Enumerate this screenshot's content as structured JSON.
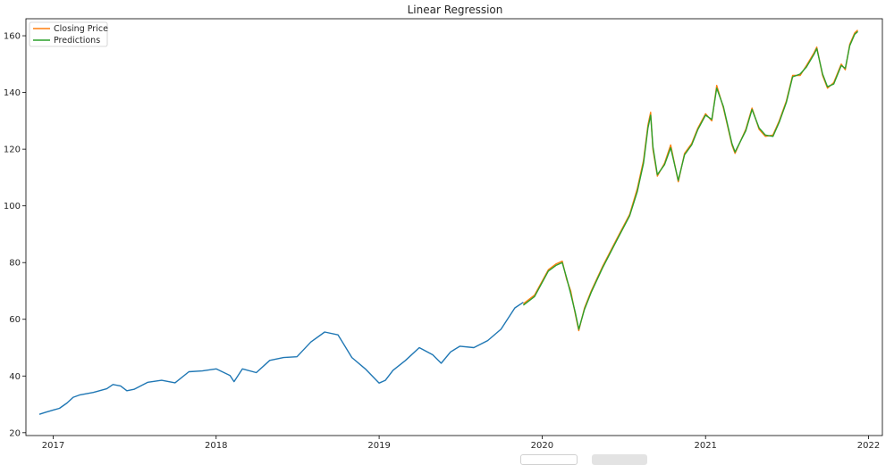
{
  "chart_data": {
    "type": "line",
    "title": "Linear Regression",
    "xlabel": "",
    "ylabel": "",
    "x_axis": "date",
    "xlim": [
      "2016-11-01",
      "2022-02-01"
    ],
    "ylim": [
      19,
      166
    ],
    "x_ticks": [
      "2017-01-01",
      "2018-01-01",
      "2019-01-01",
      "2020-01-01",
      "2021-01-01",
      "2022-01-01"
    ],
    "x_tick_labels": [
      "2017",
      "2018",
      "2019",
      "2020",
      "2021",
      "2022"
    ],
    "y_ticks": [
      20,
      40,
      60,
      80,
      100,
      120,
      140,
      160
    ],
    "grid": false,
    "legend": {
      "location": "top-left",
      "entries": [
        "Closing Price",
        "Predictions"
      ]
    },
    "series": [
      {
        "color": "#1f77b4",
        "points": [
          [
            "2016-12-01",
            26.5
          ],
          [
            "2016-12-15",
            27.2
          ],
          [
            "2017-01-01",
            28.0
          ],
          [
            "2017-01-15",
            28.6
          ],
          [
            "2017-02-01",
            30.5
          ],
          [
            "2017-02-15",
            32.5
          ],
          [
            "2017-03-01",
            33.3
          ],
          [
            "2017-04-01",
            34.2
          ],
          [
            "2017-05-01",
            35.5
          ],
          [
            "2017-05-15",
            37.0
          ],
          [
            "2017-06-01",
            36.5
          ],
          [
            "2017-06-15",
            34.8
          ],
          [
            "2017-07-01",
            35.3
          ],
          [
            "2017-08-01",
            37.8
          ],
          [
            "2017-09-01",
            38.5
          ],
          [
            "2017-10-01",
            37.6
          ],
          [
            "2017-11-01",
            41.5
          ],
          [
            "2017-12-01",
            41.8
          ],
          [
            "2018-01-01",
            42.5
          ],
          [
            "2018-02-01",
            40.2
          ],
          [
            "2018-02-10",
            38.0
          ],
          [
            "2018-03-01",
            42.5
          ],
          [
            "2018-04-01",
            41.2
          ],
          [
            "2018-05-01",
            45.5
          ],
          [
            "2018-06-01",
            46.5
          ],
          [
            "2018-07-01",
            46.8
          ],
          [
            "2018-08-01",
            52.0
          ],
          [
            "2018-09-01",
            55.5
          ],
          [
            "2018-10-01",
            54.5
          ],
          [
            "2018-11-01",
            46.5
          ],
          [
            "2018-12-01",
            42.5
          ],
          [
            "2019-01-01",
            37.5
          ],
          [
            "2019-01-15",
            38.5
          ],
          [
            "2019-02-01",
            42.0
          ],
          [
            "2019-03-01",
            45.5
          ],
          [
            "2019-04-01",
            50.0
          ],
          [
            "2019-05-01",
            47.5
          ],
          [
            "2019-05-20",
            44.5
          ],
          [
            "2019-06-10",
            48.5
          ],
          [
            "2019-07-01",
            50.5
          ],
          [
            "2019-08-01",
            50.0
          ],
          [
            "2019-09-01",
            52.5
          ],
          [
            "2019-10-01",
            56.5
          ],
          [
            "2019-11-01",
            64.0
          ],
          [
            "2019-11-20",
            66.0
          ]
        ]
      },
      {
        "name": "Closing Price",
        "color": "#ff7f0e",
        "points": [
          [
            "2019-11-20",
            65.5
          ],
          [
            "2019-12-15",
            68.5
          ],
          [
            "2020-01-15",
            77.5
          ],
          [
            "2020-02-01",
            79.5
          ],
          [
            "2020-02-15",
            80.5
          ],
          [
            "2020-02-25",
            74.0
          ],
          [
            "2020-03-05",
            70.0
          ],
          [
            "2020-03-15",
            62.0
          ],
          [
            "2020-03-23",
            56.0
          ],
          [
            "2020-04-05",
            64.0
          ],
          [
            "2020-04-20",
            70.0
          ],
          [
            "2020-05-15",
            78.5
          ],
          [
            "2020-06-15",
            88.0
          ],
          [
            "2020-07-15",
            97.0
          ],
          [
            "2020-08-01",
            106.0
          ],
          [
            "2020-08-15",
            116.0
          ],
          [
            "2020-08-25",
            128.5
          ],
          [
            "2020-08-31",
            133.0
          ],
          [
            "2020-09-05",
            120.0
          ],
          [
            "2020-09-15",
            110.5
          ],
          [
            "2020-10-01",
            115.0
          ],
          [
            "2020-10-15",
            121.5
          ],
          [
            "2020-11-01",
            108.5
          ],
          [
            "2020-11-15",
            118.5
          ],
          [
            "2020-12-01",
            122.0
          ],
          [
            "2020-12-15",
            127.5
          ],
          [
            "2021-01-01",
            132.5
          ],
          [
            "2021-01-15",
            130.0
          ],
          [
            "2021-01-26",
            142.5
          ],
          [
            "2021-02-10",
            134.5
          ],
          [
            "2021-03-01",
            121.5
          ],
          [
            "2021-03-08",
            118.5
          ],
          [
            "2021-04-01",
            127.0
          ],
          [
            "2021-04-15",
            134.5
          ],
          [
            "2021-05-01",
            127.0
          ],
          [
            "2021-05-15",
            124.5
          ],
          [
            "2021-06-01",
            125.0
          ],
          [
            "2021-06-15",
            130.0
          ],
          [
            "2021-07-01",
            137.0
          ],
          [
            "2021-07-15",
            146.0
          ],
          [
            "2021-08-01",
            146.0
          ],
          [
            "2021-08-15",
            149.5
          ],
          [
            "2021-09-01",
            154.0
          ],
          [
            "2021-09-07",
            156.0
          ],
          [
            "2021-09-20",
            146.0
          ],
          [
            "2021-10-01",
            141.5
          ],
          [
            "2021-10-15",
            143.5
          ],
          [
            "2021-11-01",
            150.0
          ],
          [
            "2021-11-10",
            148.0
          ],
          [
            "2021-11-20",
            157.0
          ],
          [
            "2021-12-01",
            161.0
          ],
          [
            "2021-12-08",
            162.0
          ]
        ]
      },
      {
        "name": "Predictions",
        "color": "#2ca02c",
        "points": [
          [
            "2019-11-20",
            65.0
          ],
          [
            "2019-12-15",
            68.0
          ],
          [
            "2020-01-15",
            77.0
          ],
          [
            "2020-02-01",
            79.0
          ],
          [
            "2020-02-15",
            80.0
          ],
          [
            "2020-02-25",
            74.5
          ],
          [
            "2020-03-05",
            69.0
          ],
          [
            "2020-03-15",
            62.5
          ],
          [
            "2020-03-23",
            56.5
          ],
          [
            "2020-04-05",
            63.5
          ],
          [
            "2020-04-20",
            69.5
          ],
          [
            "2020-05-15",
            78.0
          ],
          [
            "2020-06-15",
            87.5
          ],
          [
            "2020-07-15",
            96.5
          ],
          [
            "2020-08-01",
            105.0
          ],
          [
            "2020-08-15",
            115.0
          ],
          [
            "2020-08-25",
            127.5
          ],
          [
            "2020-08-31",
            132.0
          ],
          [
            "2020-09-05",
            121.0
          ],
          [
            "2020-09-15",
            111.0
          ],
          [
            "2020-10-01",
            114.5
          ],
          [
            "2020-10-15",
            120.5
          ],
          [
            "2020-11-01",
            109.0
          ],
          [
            "2020-11-15",
            118.0
          ],
          [
            "2020-12-01",
            121.5
          ],
          [
            "2020-12-15",
            127.0
          ],
          [
            "2021-01-01",
            132.0
          ],
          [
            "2021-01-15",
            130.5
          ],
          [
            "2021-01-26",
            141.5
          ],
          [
            "2021-02-10",
            135.0
          ],
          [
            "2021-03-01",
            122.0
          ],
          [
            "2021-03-08",
            119.0
          ],
          [
            "2021-04-01",
            126.5
          ],
          [
            "2021-04-15",
            134.0
          ],
          [
            "2021-05-01",
            127.5
          ],
          [
            "2021-05-15",
            125.0
          ],
          [
            "2021-06-01",
            124.5
          ],
          [
            "2021-06-15",
            129.5
          ],
          [
            "2021-07-01",
            136.5
          ],
          [
            "2021-07-15",
            145.5
          ],
          [
            "2021-08-01",
            146.5
          ],
          [
            "2021-08-15",
            149.0
          ],
          [
            "2021-09-01",
            153.5
          ],
          [
            "2021-09-07",
            155.5
          ],
          [
            "2021-09-20",
            146.5
          ],
          [
            "2021-10-01",
            142.0
          ],
          [
            "2021-10-15",
            143.0
          ],
          [
            "2021-11-01",
            149.5
          ],
          [
            "2021-11-10",
            148.5
          ],
          [
            "2021-11-20",
            156.5
          ],
          [
            "2021-12-01",
            160.5
          ],
          [
            "2021-12-08",
            161.5
          ]
        ]
      }
    ]
  }
}
